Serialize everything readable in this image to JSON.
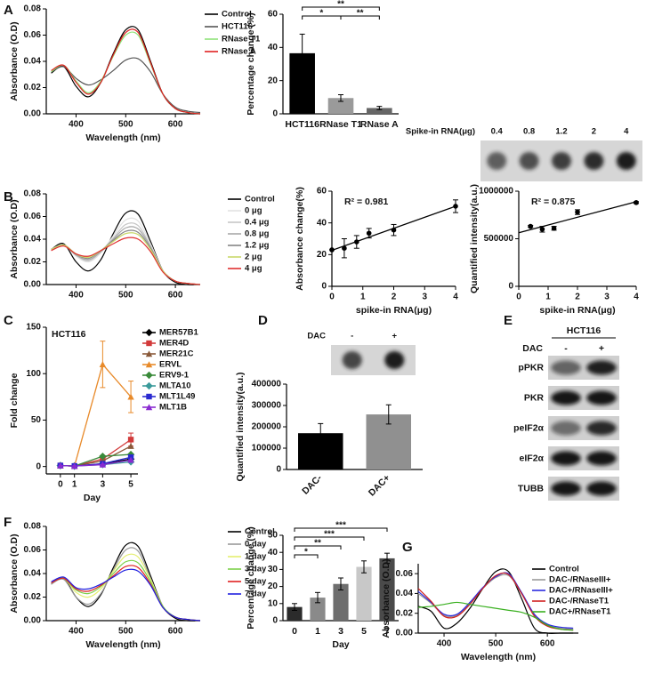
{
  "chart_data": [
    {
      "type": "line",
      "panel": "A",
      "xlabel": "Wavelength (nm)",
      "ylabel": "Absorbance (O.D)",
      "x": [
        350,
        375,
        400,
        425,
        450,
        475,
        500,
        525,
        550,
        575,
        600,
        625,
        650
      ],
      "xlim": [
        340,
        650
      ],
      "xticks": [
        400,
        500,
        600
      ],
      "ylim": [
        0,
        0.08
      ],
      "yticks": [
        {
          "value": 0,
          "label": "0.00"
        },
        0.02,
        0.04,
        0.06,
        0.08
      ],
      "legend": "outside right",
      "series": [
        {
          "name": "Control",
          "color": "#000000",
          "values": [
            0.031,
            0.036,
            0.021,
            0.013,
            0.024,
            0.046,
            0.064,
            0.064,
            0.04,
            0.015,
            0.004,
            0.001,
            0.0
          ]
        },
        {
          "name": "HCT116",
          "color": "#555555",
          "values": [
            0.032,
            0.036,
            0.027,
            0.022,
            0.026,
            0.033,
            0.041,
            0.042,
            0.032,
            0.015,
            0.005,
            0.002,
            0.001
          ]
        },
        {
          "name": "RNase T1",
          "color": "#8fe37a",
          "values": [
            0.032,
            0.037,
            0.025,
            0.016,
            0.025,
            0.044,
            0.06,
            0.06,
            0.038,
            0.015,
            0.004,
            0.001,
            0.0
          ]
        },
        {
          "name": "RNase A",
          "color": "#e02020",
          "values": [
            0.033,
            0.037,
            0.024,
            0.015,
            0.024,
            0.045,
            0.062,
            0.062,
            0.039,
            0.015,
            0.004,
            0.001,
            0.0
          ]
        }
      ]
    },
    {
      "type": "bar",
      "ylabel": "Percentage change (%)",
      "categories": [
        "HCT116",
        "RNase T1",
        "RNase A"
      ],
      "values": [
        36.5,
        9.5,
        3.5
      ],
      "errors": [
        11.5,
        2,
        1
      ],
      "colors": [
        "#000000",
        "#9a9a9a",
        "#666666"
      ],
      "ylim": [
        0,
        60
      ],
      "yticks": [
        0,
        20,
        40,
        60
      ],
      "comparisons": [
        {
          "groups": [
            "HCT116",
            "RNase T1"
          ],
          "label": "*"
        },
        {
          "groups": [
            "RNase T1",
            "RNase A"
          ],
          "label": "**"
        },
        {
          "groups": [
            "HCT116",
            "RNase A"
          ],
          "label": "**"
        }
      ]
    },
    {
      "type": "line",
      "panel": "B",
      "ylabel": "Absorbance (O.D)",
      "x": [
        350,
        375,
        400,
        425,
        450,
        475,
        500,
        525,
        550,
        575,
        600,
        625,
        650
      ],
      "xlim": [
        340,
        650
      ],
      "xticks": [
        400,
        500,
        600
      ],
      "ylim": [
        0,
        0.08
      ],
      "yticks": [
        {
          "value": 0,
          "label": "0.00"
        },
        0.02,
        0.04,
        0.06,
        0.08
      ],
      "legend": "outside right",
      "series": [
        {
          "name": "Control",
          "color": "#000000",
          "values": [
            0.031,
            0.036,
            0.02,
            0.012,
            0.022,
            0.045,
            0.063,
            0.062,
            0.038,
            0.012,
            0.002,
            0.0,
            0.0
          ]
        },
        {
          "name": "0 μg",
          "color": "#e2e2e2",
          "values": [
            0.031,
            0.035,
            0.025,
            0.02,
            0.028,
            0.043,
            0.057,
            0.056,
            0.036,
            0.012,
            0.003,
            0.001,
            0.0
          ]
        },
        {
          "name": "0.4 μg",
          "color": "#c6c6c6",
          "values": [
            0.031,
            0.035,
            0.026,
            0.021,
            0.029,
            0.041,
            0.053,
            0.052,
            0.034,
            0.012,
            0.003,
            0.001,
            0.0
          ]
        },
        {
          "name": "0.8 μg",
          "color": "#a8a8a8",
          "values": [
            0.031,
            0.035,
            0.026,
            0.022,
            0.029,
            0.04,
            0.05,
            0.049,
            0.033,
            0.012,
            0.003,
            0.001,
            0.0
          ]
        },
        {
          "name": "1.2 μg",
          "color": "#858585",
          "values": [
            0.031,
            0.035,
            0.027,
            0.023,
            0.03,
            0.039,
            0.047,
            0.046,
            0.032,
            0.012,
            0.003,
            0.001,
            0.0
          ]
        },
        {
          "name": "2 μg",
          "color": "#c9d86a",
          "values": [
            0.031,
            0.035,
            0.027,
            0.024,
            0.03,
            0.038,
            0.045,
            0.044,
            0.031,
            0.012,
            0.003,
            0.001,
            0.0
          ]
        },
        {
          "name": "4 μg",
          "color": "#e03030",
          "values": [
            0.03,
            0.034,
            0.027,
            0.025,
            0.03,
            0.036,
            0.041,
            0.04,
            0.029,
            0.011,
            0.003,
            0.001,
            0.0
          ]
        }
      ]
    },
    {
      "type": "scatter",
      "annotation": "R² = 0.981",
      "xlabel": "spike-in RNA(μg)",
      "ylabel": "Absorbance change(%)",
      "x": [
        0,
        0.4,
        0.8,
        1.2,
        2,
        4
      ],
      "values": [
        23,
        24,
        28,
        33.5,
        35.5,
        50.5
      ],
      "errors": [
        0,
        6,
        4,
        3,
        3.5,
        4
      ],
      "xlim": [
        0,
        4
      ],
      "xticks": [
        0,
        1,
        2,
        3,
        4
      ],
      "ylim": [
        0,
        60
      ],
      "yticks": [
        0,
        20,
        40,
        60
      ],
      "color": "#000000"
    },
    {
      "type": "scatter",
      "annotation": "R² = 0.875",
      "xlabel": "spike-in RNA(μg)",
      "ylabel": "Quantified intensity(a.u.)",
      "x": [
        0.4,
        0.8,
        1.2,
        2,
        4
      ],
      "values": [
        630000,
        600000,
        610000,
        780000,
        880000
      ],
      "errors": [
        10000,
        30000,
        20000,
        25000,
        10000
      ],
      "xlim": [
        0,
        4
      ],
      "xticks": [
        0,
        1,
        2,
        3,
        4
      ],
      "ylim": [
        0,
        1000000
      ],
      "yticks": [
        0,
        500000,
        1000000
      ],
      "color": "#000000",
      "blot": {
        "title": "Spike-in RNA(μg)",
        "labels": [
          "0.4",
          "0.8",
          "1.2",
          "2",
          "4"
        ]
      }
    },
    {
      "type": "line",
      "panel": "C",
      "title": "HCT116",
      "xlabel": "Day",
      "ylabel": "Fold change",
      "x": [
        0,
        1,
        3,
        5
      ],
      "xlim": [
        -1,
        5.5
      ],
      "xticks": [
        0,
        1,
        3,
        5
      ],
      "ylim": [
        -8,
        150
      ],
      "yticks": [
        0,
        50,
        100,
        150
      ],
      "legend": "outside right",
      "series": [
        {
          "name": "MER57B1",
          "color": "#000000",
          "marker": "diamond",
          "values": [
            1,
            0.5,
            3,
            8
          ]
        },
        {
          "name": "MER4D",
          "color": "#d23a3a",
          "marker": "square",
          "values": [
            1,
            0.5,
            8,
            29
          ],
          "errors": [
            0,
            0,
            2,
            7
          ]
        },
        {
          "name": "MER21C",
          "color": "#8a5a3a",
          "marker": "triangle",
          "values": [
            1,
            0.5,
            6,
            22
          ]
        },
        {
          "name": "ERVL",
          "color": "#e88a2a",
          "marker": "triangle",
          "values": [
            1,
            0.5,
            110,
            75
          ],
          "errors": [
            0,
            0,
            25,
            17
          ]
        },
        {
          "name": "ERV9-1",
          "color": "#3a8a3a",
          "marker": "diamond",
          "values": [
            1,
            0.5,
            11,
            13
          ]
        },
        {
          "name": "MLTA10",
          "color": "#3a9a9a",
          "marker": "diamond",
          "values": [
            1,
            0.5,
            2,
            5
          ]
        },
        {
          "name": "MLT1L49",
          "color": "#2a2ad0",
          "marker": "square",
          "values": [
            1,
            0.5,
            3,
            10
          ]
        },
        {
          "name": "MLT1B",
          "color": "#8a2ad0",
          "marker": "triangle",
          "values": [
            1,
            0.5,
            2,
            7
          ]
        }
      ]
    },
    {
      "type": "bar",
      "panel": "D",
      "ylabel": "Quantified intensity(a.u.)",
      "categories": [
        "DAC-",
        "DAC+"
      ],
      "values": [
        170000,
        258000
      ],
      "errors": [
        45000,
        45000
      ],
      "colors": [
        "#000000",
        "#909090"
      ],
      "ylim": [
        0,
        400000
      ],
      "yticks": [
        0,
        100000,
        200000,
        300000,
        400000
      ],
      "blot": {
        "title": "DAC",
        "labels": [
          "-",
          "+"
        ]
      }
    },
    {
      "type": "western",
      "panel": "E",
      "title": "HCT116",
      "treatment": "DAC",
      "lanes": [
        "-",
        "+"
      ],
      "rows": [
        "pPKR",
        "PKR",
        "peIF2α",
        "eIF2α",
        "TUBB"
      ]
    },
    {
      "type": "line",
      "panel": "F",
      "xlabel": "Wavelength (nm)",
      "ylabel": "Absorbance (O.D)",
      "x": [
        350,
        375,
        400,
        425,
        450,
        475,
        500,
        525,
        550,
        575,
        600,
        625,
        650
      ],
      "xlim": [
        340,
        650
      ],
      "xticks": [
        400,
        500,
        600
      ],
      "ylim": [
        0,
        0.08
      ],
      "yticks": [
        {
          "value": 0,
          "label": "0.00"
        },
        0.02,
        0.04,
        0.06,
        0.08
      ],
      "legend": "outside right",
      "series": [
        {
          "name": "Control",
          "color": "#000000",
          "values": [
            0.031,
            0.036,
            0.02,
            0.012,
            0.022,
            0.045,
            0.064,
            0.063,
            0.038,
            0.012,
            0.002,
            0.0,
            0.0
          ]
        },
        {
          "name": "0 day",
          "color": "#999999",
          "values": [
            0.031,
            0.035,
            0.02,
            0.014,
            0.023,
            0.043,
            0.06,
            0.059,
            0.036,
            0.012,
            0.003,
            0.001,
            0.0
          ]
        },
        {
          "name": "1 day",
          "color": "#e4ee70",
          "values": [
            0.032,
            0.036,
            0.024,
            0.02,
            0.027,
            0.042,
            0.055,
            0.054,
            0.035,
            0.012,
            0.003,
            0.001,
            0.0
          ]
        },
        {
          "name": "3 day",
          "color": "#7cd04a",
          "values": [
            0.032,
            0.036,
            0.026,
            0.023,
            0.029,
            0.04,
            0.05,
            0.049,
            0.033,
            0.012,
            0.003,
            0.001,
            0.0
          ]
        },
        {
          "name": "5 day",
          "color": "#e02020",
          "values": [
            0.032,
            0.036,
            0.027,
            0.025,
            0.03,
            0.038,
            0.046,
            0.045,
            0.031,
            0.011,
            0.003,
            0.001,
            0.0
          ]
        },
        {
          "name": "7 day",
          "color": "#2020e0",
          "values": [
            0.033,
            0.037,
            0.028,
            0.027,
            0.031,
            0.037,
            0.043,
            0.042,
            0.03,
            0.011,
            0.003,
            0.001,
            0.0
          ]
        }
      ]
    },
    {
      "type": "bar",
      "xlabel": "Day",
      "ylabel": "Percentage change (%)",
      "categories": [
        "0",
        "1",
        "3",
        "5",
        "7"
      ],
      "values": [
        8,
        13.5,
        21.5,
        31.5,
        36.5
      ],
      "errors": [
        2,
        3,
        3.5,
        3.5,
        3
      ],
      "colors": [
        "#2b2b2b",
        "#8a8a8a",
        "#6e6e6e",
        "#c8c8c8",
        "#4a4a4a"
      ],
      "ylim": [
        0,
        50
      ],
      "yticks": [
        0,
        10,
        20,
        30,
        40,
        50
      ],
      "comparisons": [
        {
          "groups": [
            "0",
            "1"
          ],
          "label": "*"
        },
        {
          "groups": [
            "0",
            "3"
          ],
          "label": "**"
        },
        {
          "groups": [
            "0",
            "5"
          ],
          "label": "***"
        },
        {
          "groups": [
            "0",
            "7"
          ],
          "label": "***"
        }
      ]
    },
    {
      "type": "line",
      "panel": "G",
      "xlabel": "Wavelength (nm)",
      "ylabel": "Absorbance (O.D)",
      "x": [
        350,
        375,
        400,
        425,
        450,
        475,
        500,
        525,
        550,
        575,
        600,
        625,
        650
      ],
      "xlim": [
        350,
        660
      ],
      "xticks": [
        400,
        500,
        600
      ],
      "ylim": [
        0,
        0.07
      ],
      "yticks": [
        {
          "value": 0,
          "label": "0.00"
        },
        0.02,
        0.04,
        0.06
      ],
      "legend": "upper right",
      "series": [
        {
          "name": "Control",
          "color": "#000000",
          "values": [
            0.027,
            0.022,
            0.005,
            0.01,
            0.025,
            0.045,
            0.062,
            0.062,
            0.035,
            0.005,
            0.0,
            0.0,
            0.0
          ]
        },
        {
          "name": "DAC-/RNaseIII+",
          "color": "#9a9a9a",
          "values": [
            0.04,
            0.03,
            0.018,
            0.018,
            0.03,
            0.045,
            0.056,
            0.058,
            0.04,
            0.018,
            0.008,
            0.005,
            0.004
          ]
        },
        {
          "name": "DAC+/RNaseIII+",
          "color": "#2a2ae0",
          "values": [
            0.042,
            0.031,
            0.019,
            0.019,
            0.031,
            0.046,
            0.057,
            0.06,
            0.041,
            0.019,
            0.009,
            0.006,
            0.005
          ]
        },
        {
          "name": "DAC-/RNaseT1",
          "color": "#d02020",
          "values": [
            0.045,
            0.032,
            0.017,
            0.017,
            0.029,
            0.045,
            0.058,
            0.059,
            0.04,
            0.017,
            0.007,
            0.004,
            0.003
          ]
        },
        {
          "name": "DAC+/RNaseT1",
          "color": "#3ab020",
          "values": [
            0.026,
            0.027,
            0.029,
            0.031,
            0.029,
            0.027,
            0.025,
            0.023,
            0.021,
            0.016,
            0.008,
            0.004,
            0.003
          ]
        }
      ]
    }
  ]
}
